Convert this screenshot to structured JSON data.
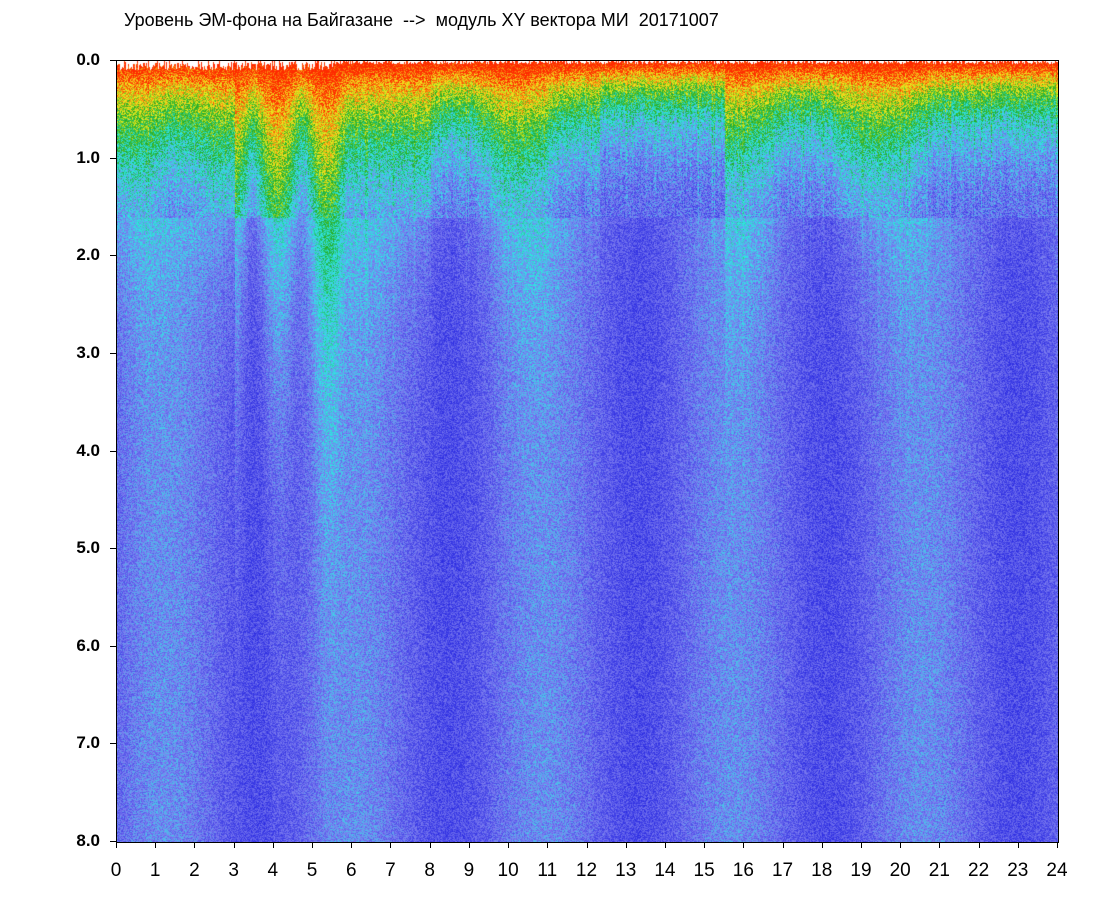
{
  "title": "Уровень ЭМ-фона на Байгазане  -->  модуль XY вектора МИ  20171007",
  "chart_data": {
    "type": "heatmap",
    "title": "Уровень ЭМ-фона на Байгазане  -->  модуль XY вектора МИ  20171007",
    "xlabel": "",
    "ylabel": "",
    "x_ticks": [
      "0",
      "1",
      "2",
      "3",
      "4",
      "5",
      "6",
      "7",
      "8",
      "9",
      "10",
      "11",
      "12",
      "13",
      "14",
      "15",
      "16",
      "17",
      "18",
      "19",
      "20",
      "21",
      "22",
      "23",
      "24"
    ],
    "y_ticks": [
      "0.0",
      "1.0",
      "2.0",
      "3.0",
      "4.0",
      "5.0",
      "6.0",
      "7.0",
      "8.0"
    ],
    "xlim": [
      0,
      24
    ],
    "ylim": [
      0,
      8
    ],
    "y_inverted": true,
    "colors": [
      "#1f1fe0",
      "#7d7df0",
      "#2fe6e6",
      "#22aa22",
      "#f0f020",
      "#ff2a00"
    ],
    "grid": false
  }
}
